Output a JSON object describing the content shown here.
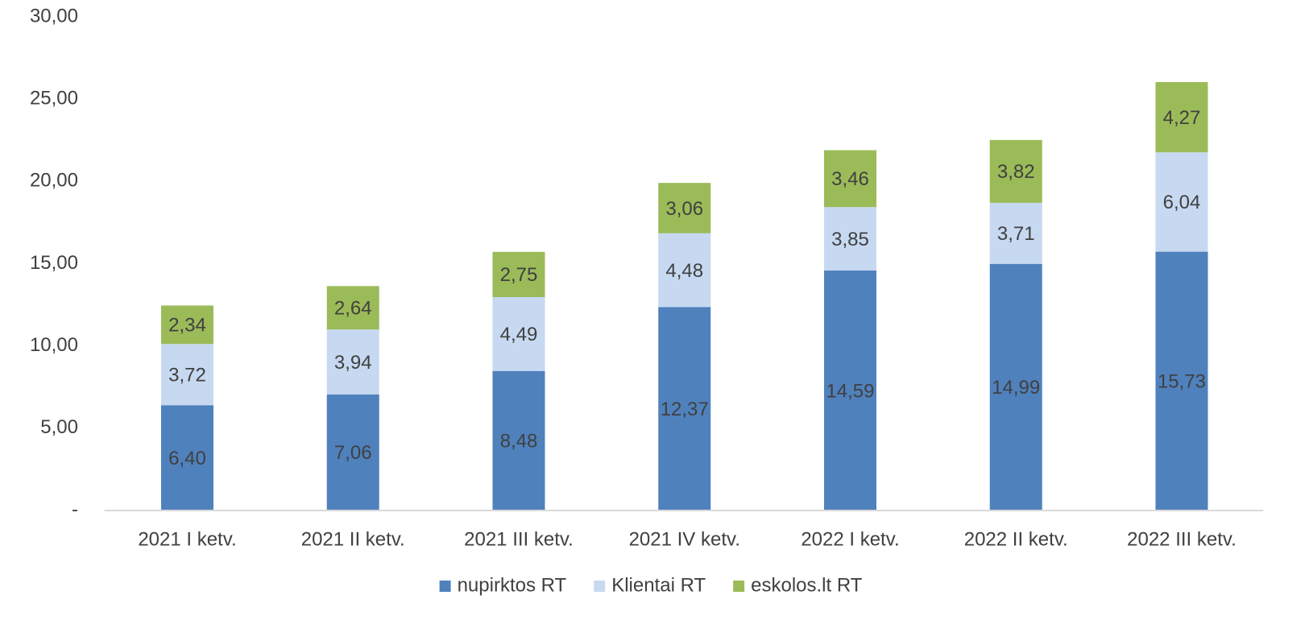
{
  "chart_data": {
    "type": "stacked_bar",
    "categories": [
      "2021 I ketv.",
      "2021 II ketv.",
      "2021 III ketv.",
      "2021 IV ketv.",
      "2022 I ketv.",
      "2022 II ketv.",
      "2022 III ketv."
    ],
    "series": [
      {
        "name": "nupirktos RT",
        "color": "#4f81bd",
        "values": [
          6.4,
          7.06,
          8.48,
          12.37,
          14.59,
          14.99,
          15.73
        ],
        "value_labels": [
          "6,40",
          "7,06",
          "8,48",
          "12,37",
          "14,59",
          "14,99",
          "15,73"
        ]
      },
      {
        "name": "Klientai RT",
        "color": "#c6d9f1",
        "values": [
          3.72,
          3.94,
          4.49,
          4.48,
          3.85,
          3.71,
          6.04
        ],
        "value_labels": [
          "3,72",
          "3,94",
          "4,49",
          "4,48",
          "3,85",
          "3,71",
          "6,04"
        ]
      },
      {
        "name": "eskolos.lt RT",
        "color": "#9bbb59",
        "values": [
          2.34,
          2.64,
          2.75,
          3.06,
          3.46,
          3.82,
          4.27
        ],
        "value_labels": [
          "2,34",
          "2,64",
          "2,75",
          "3,06",
          "3,46",
          "3,82",
          "4,27"
        ]
      }
    ],
    "ylim": [
      0,
      30
    ],
    "yticks": [
      {
        "value": 0,
        "label": "-"
      },
      {
        "value": 5,
        "label": "5,00"
      },
      {
        "value": 10,
        "label": "10,00"
      },
      {
        "value": 15,
        "label": "15,00"
      },
      {
        "value": 20,
        "label": "20,00"
      },
      {
        "value": 25,
        "label": "25,00"
      },
      {
        "value": 30,
        "label": "30,00"
      }
    ],
    "grid": false,
    "legend": "bottom"
  }
}
